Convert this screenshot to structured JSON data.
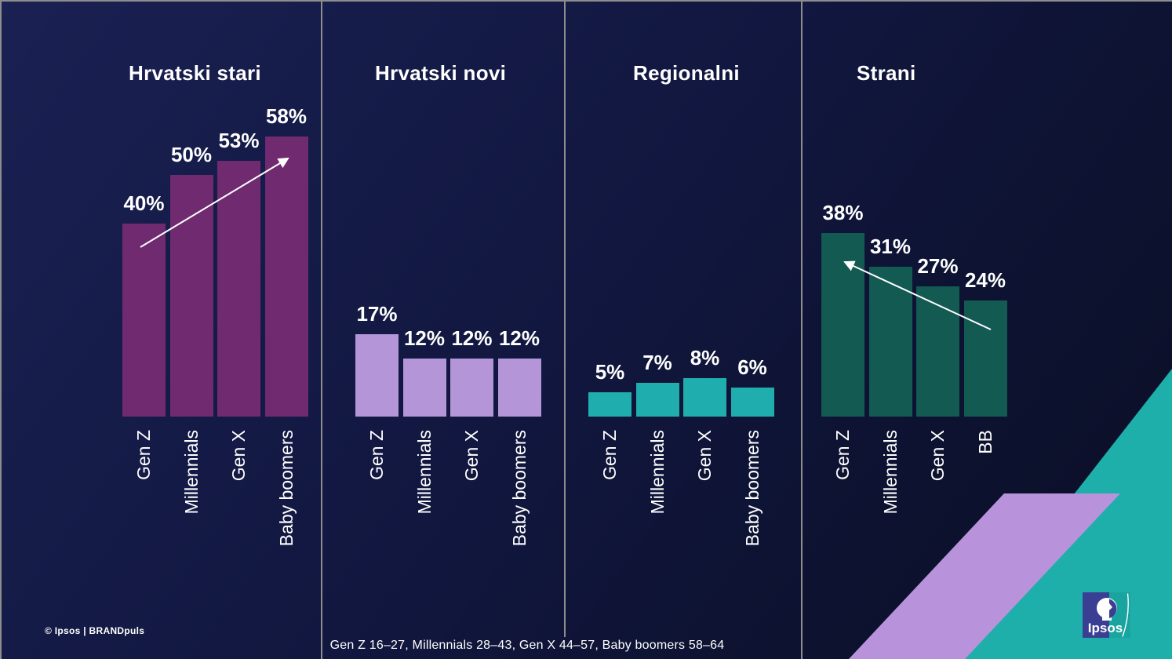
{
  "slide": {
    "footer_note": "Gen Z 16–27, Millennials 28–43, Gen X 44–57, Baby boomers 58–64",
    "copyright": "© Ipsos | BRANDpuls",
    "logo_text": "Ipsos"
  },
  "colors": {
    "background_top": "#1a2153",
    "background_mid": "#11173f",
    "background_bottom": "#0a0e24",
    "divider": "#8d8d8d",
    "text": "#ffffff",
    "deco_triangle": "#1eafaa",
    "deco_parallelogram": "#b893db",
    "logo_blue": "#3b3f94",
    "logo_teal": "#1aa49f"
  },
  "chart_data": [
    {
      "type": "bar",
      "title": "Hrvatski stari",
      "categories": [
        "Gen Z",
        "Millennials",
        "Gen X",
        "Baby boomers"
      ],
      "values": [
        40,
        50,
        53,
        58
      ],
      "unit": "%",
      "bar_color": "#6f2a70",
      "trend_arrow": "up",
      "ylim": [
        0,
        60
      ],
      "grid": false,
      "legend": false
    },
    {
      "type": "bar",
      "title": "Hrvatski novi",
      "categories": [
        "Gen Z",
        "Millennials",
        "Gen X",
        "Baby boomers"
      ],
      "values": [
        17,
        12,
        12,
        12
      ],
      "unit": "%",
      "bar_color": "#b495d8",
      "trend_arrow": null,
      "ylim": [
        0,
        60
      ],
      "grid": false,
      "legend": false
    },
    {
      "type": "bar",
      "title": "Regionalni",
      "categories": [
        "Gen Z",
        "Millennials",
        "Gen X",
        "Baby boomers"
      ],
      "values": [
        5,
        7,
        8,
        6
      ],
      "unit": "%",
      "bar_color": "#20adae",
      "trend_arrow": null,
      "ylim": [
        0,
        60
      ],
      "grid": false,
      "legend": false
    },
    {
      "type": "bar",
      "title": "Strani",
      "categories": [
        "Gen Z",
        "Millennials",
        "Gen X",
        "BB"
      ],
      "values": [
        38,
        31,
        27,
        24
      ],
      "unit": "%",
      "bar_color": "#135a53",
      "trend_arrow": "down",
      "ylim": [
        0,
        60
      ],
      "grid": false,
      "legend": false
    }
  ]
}
